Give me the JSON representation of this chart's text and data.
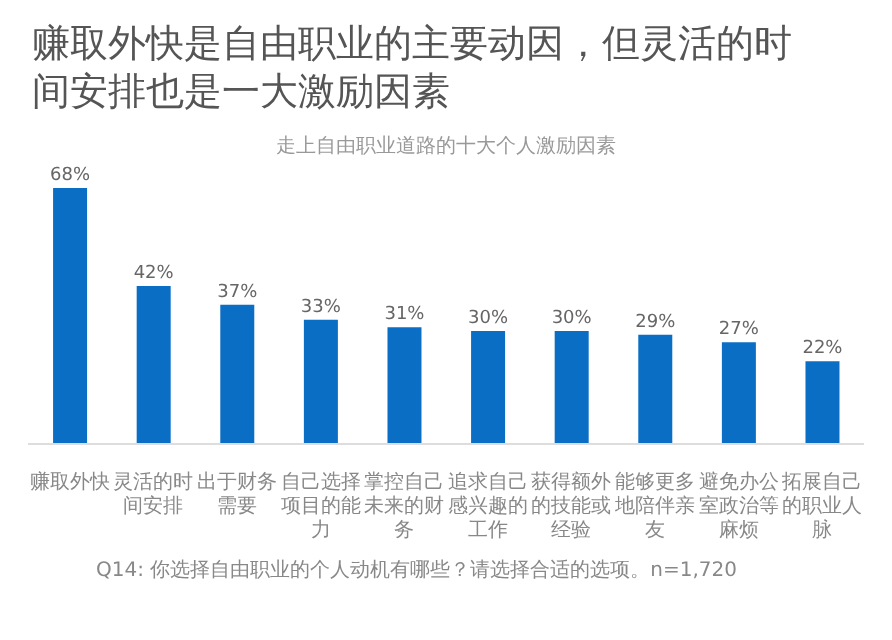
{
  "chart_data": {
    "type": "bar",
    "title": "赚取外快是自由职业的主要动因，但灵活的时间安排也是一大激励因素",
    "subtitle": "走上自由职业道路的十大个人激励因素",
    "categories": [
      "赚取外快",
      "灵活的时间安排",
      "出于财务需要",
      "自己选择项目的能力",
      "掌控自己未来的财务",
      "追求自己感兴趣的工作",
      "获得额外的技能或经验",
      "能够更多地陪伴亲友",
      "避免办公室政治等麻烦",
      "拓展自己的职业人脉"
    ],
    "values": [
      68,
      42,
      37,
      33,
      31,
      30,
      30,
      29,
      27,
      22
    ],
    "value_labels": [
      "68%",
      "42%",
      "37%",
      "33%",
      "31%",
      "30%",
      "30%",
      "29%",
      "27%",
      "22%"
    ],
    "color": "#0a6ec4",
    "annotations": [
      "Q14: 你选择自由职业的个人动机有哪些？请选择合适的选项。n=1,720"
    ]
  }
}
